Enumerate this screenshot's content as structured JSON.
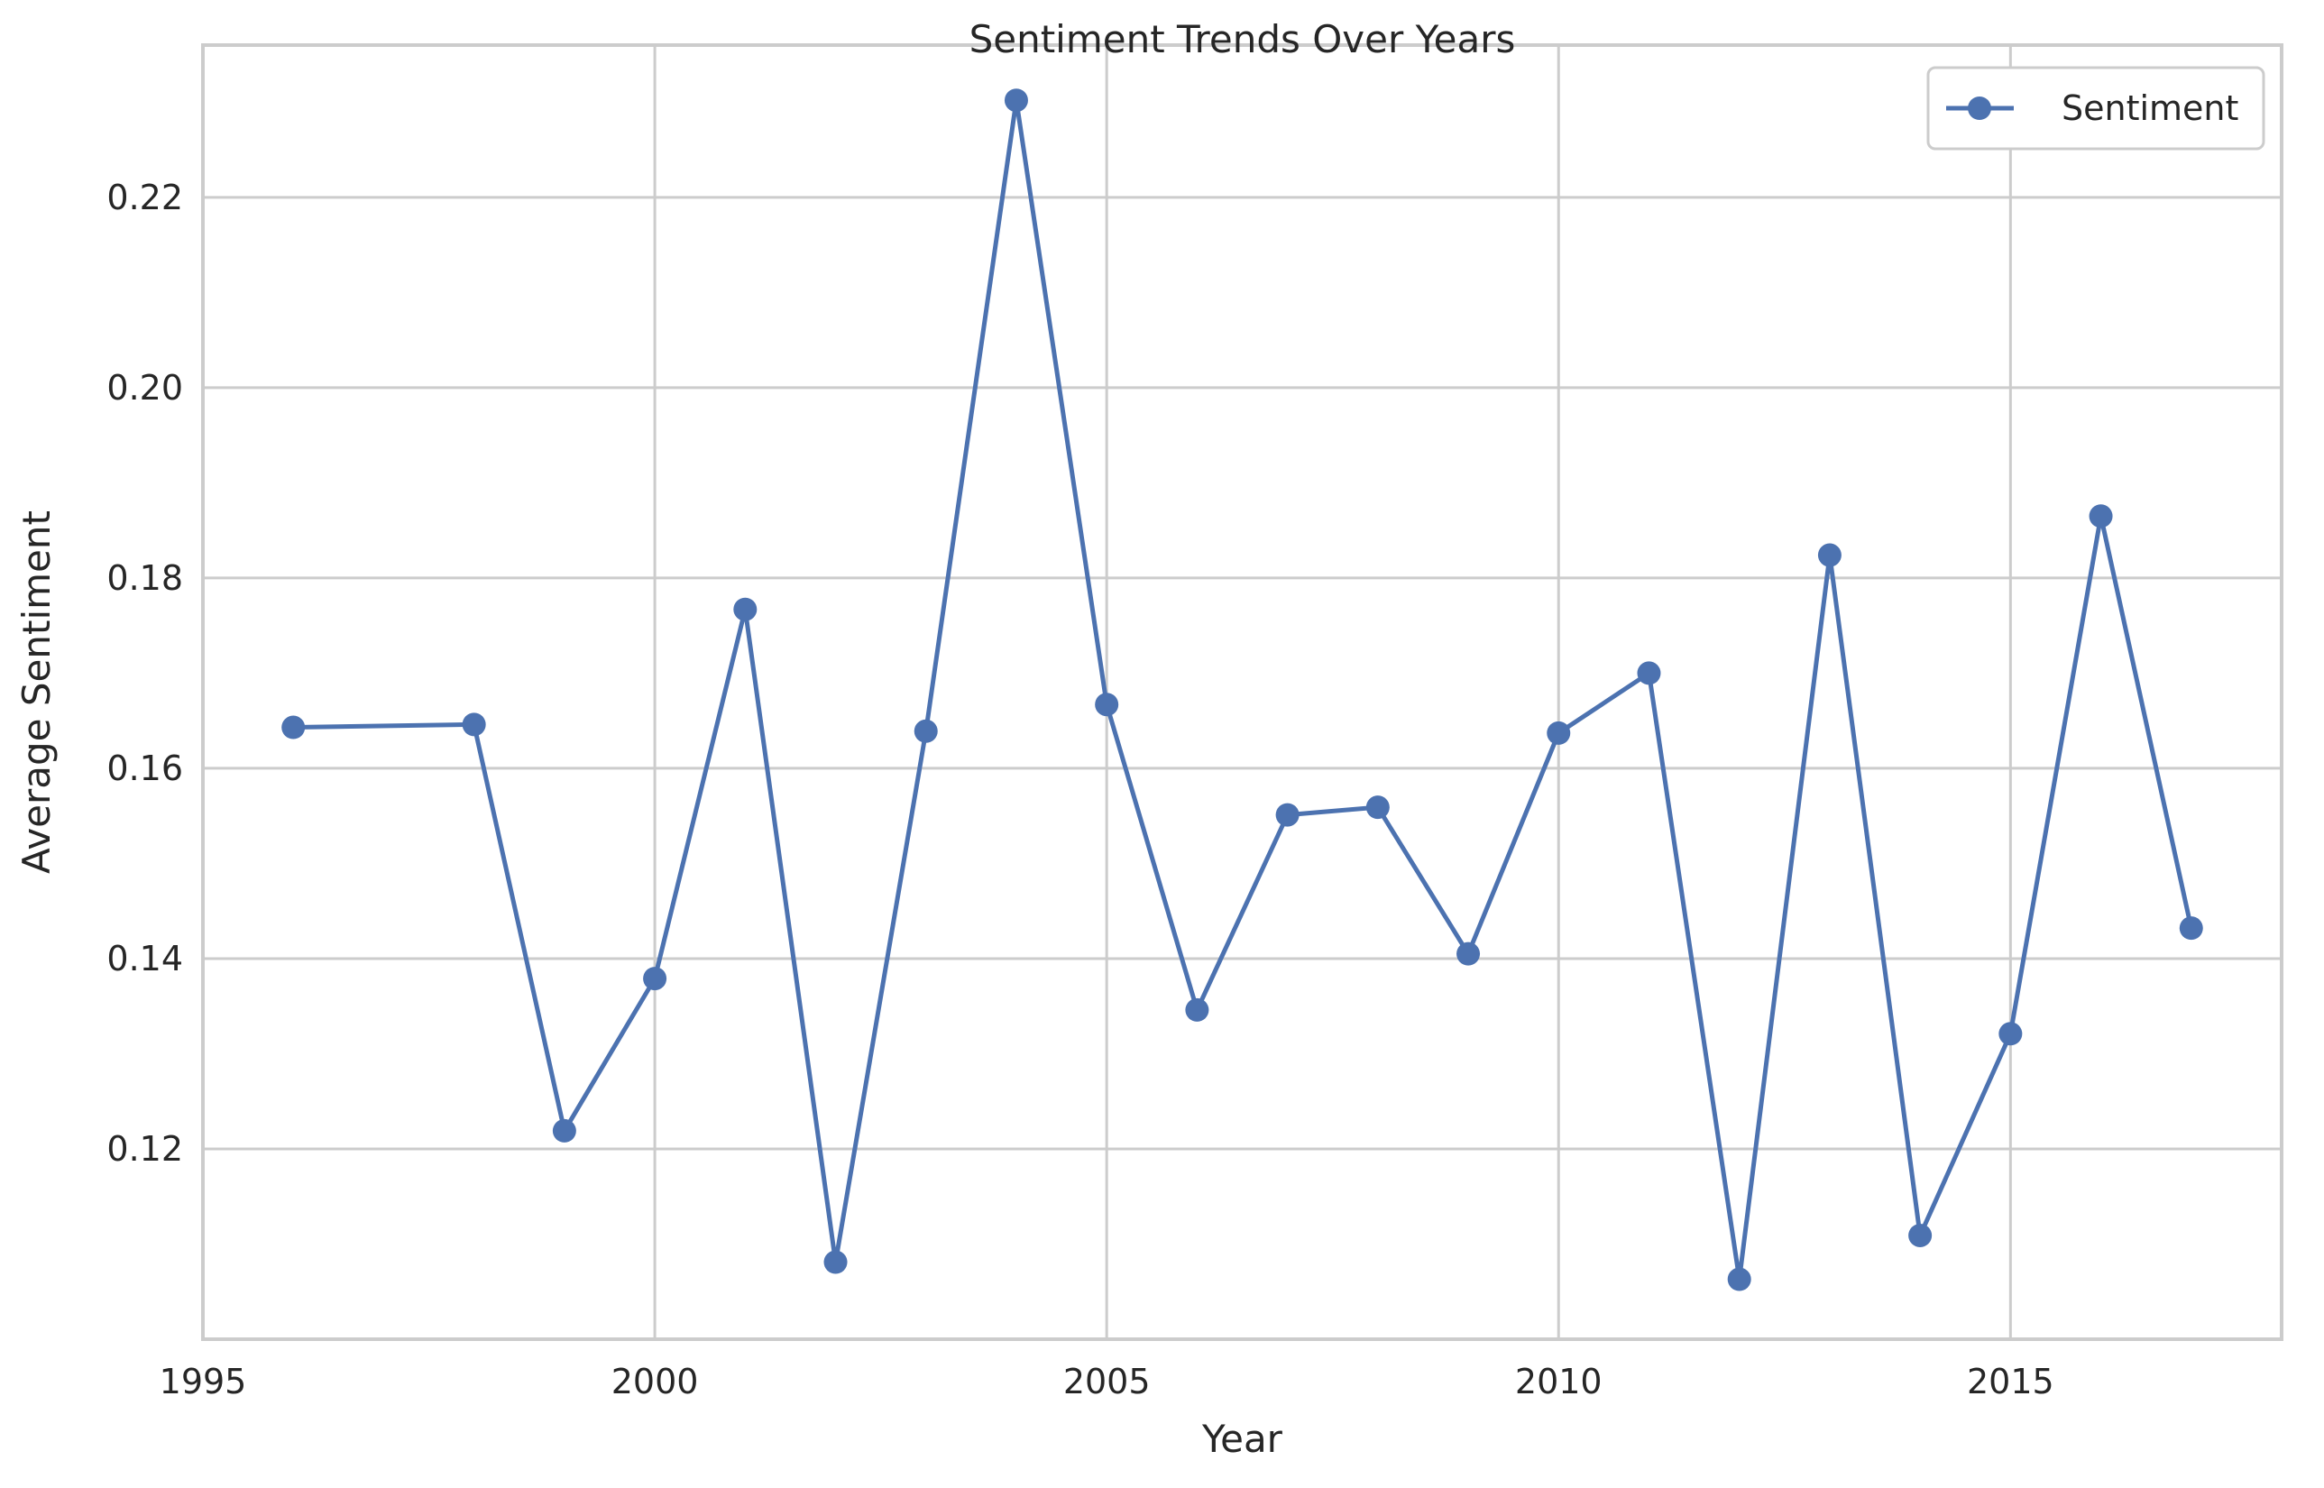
{
  "chart_data": {
    "type": "line",
    "title": "Sentiment Trends Over Years",
    "xlabel": "Year",
    "ylabel": "Average Sentiment",
    "xlim": [
      1995,
      2018
    ],
    "ylim": [
      0.1,
      0.236
    ],
    "xticks": [
      1995,
      2000,
      2005,
      2010,
      2015
    ],
    "yticks": [
      0.12,
      0.14,
      0.16,
      0.18,
      0.2,
      0.22
    ],
    "ytick_labels": [
      "0.12",
      "0.14",
      "0.16",
      "0.18",
      "0.20",
      "0.22"
    ],
    "grid": true,
    "legend_position": "top-right",
    "series": [
      {
        "name": "Sentiment",
        "color": "#4c72b0",
        "marker": "circle",
        "x": [
          1996,
          1998,
          1999,
          2000,
          2001,
          2002,
          2003,
          2004,
          2005,
          2006,
          2007,
          2008,
          2009,
          2010,
          2011,
          2012,
          2013,
          2014,
          2015,
          2016,
          2017
        ],
        "y": [
          0.1643,
          0.1646,
          0.1219,
          0.1379,
          0.1767,
          0.1081,
          0.1639,
          0.2302,
          0.1667,
          0.1346,
          0.1551,
          0.1559,
          0.1405,
          0.1637,
          0.17,
          0.1063,
          0.1824,
          0.1109,
          0.1321,
          0.1865,
          0.1432
        ]
      }
    ]
  }
}
